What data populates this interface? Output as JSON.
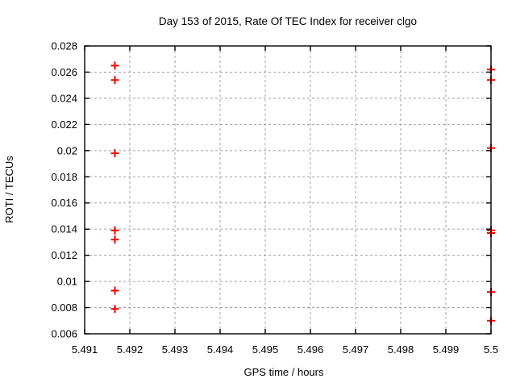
{
  "chart_data": {
    "type": "scatter",
    "title": "Day 153 of 2015, Rate Of TEC Index for receiver clgo",
    "xlabel": "GPS time / hours",
    "ylabel": "ROTI / TECUs",
    "xlim": [
      5.491,
      5.5
    ],
    "ylim": [
      0.006,
      0.028
    ],
    "xticks": [
      5.491,
      5.492,
      5.493,
      5.494,
      5.495,
      5.496,
      5.497,
      5.498,
      5.499,
      5.5
    ],
    "xtick_labels": [
      "5.491",
      "5.492",
      "5.493",
      "5.494",
      "5.495",
      "5.496",
      "5.497",
      "5.498",
      "5.499",
      "5.5"
    ],
    "yticks": [
      0.006,
      0.008,
      0.01,
      0.012,
      0.014,
      0.016,
      0.018,
      0.02,
      0.022,
      0.024,
      0.026,
      0.028
    ],
    "ytick_labels": [
      "0.006",
      "0.008",
      "0.01",
      "0.012",
      "0.014",
      "0.016",
      "0.018",
      "0.02",
      "0.022",
      "0.024",
      "0.026",
      "0.028"
    ],
    "grid": true,
    "legend": "none",
    "marker": "plus",
    "marker_color": "#ff0000",
    "frame_color": "#000000",
    "grid_color": "#a0a0a0",
    "series": [
      {
        "name": "ROTI",
        "points": [
          [
            5.49167,
            0.0265
          ],
          [
            5.49167,
            0.0254
          ],
          [
            5.49167,
            0.0198
          ],
          [
            5.49167,
            0.0139
          ],
          [
            5.49167,
            0.0132
          ],
          [
            5.49167,
            0.0093
          ],
          [
            5.49167,
            0.0079
          ],
          [
            5.5,
            0.0262
          ],
          [
            5.5,
            0.0254
          ],
          [
            5.5,
            0.0202
          ],
          [
            5.5,
            0.0139
          ],
          [
            5.5,
            0.0137
          ],
          [
            5.5,
            0.0092
          ],
          [
            5.5,
            0.007
          ]
        ]
      }
    ]
  }
}
